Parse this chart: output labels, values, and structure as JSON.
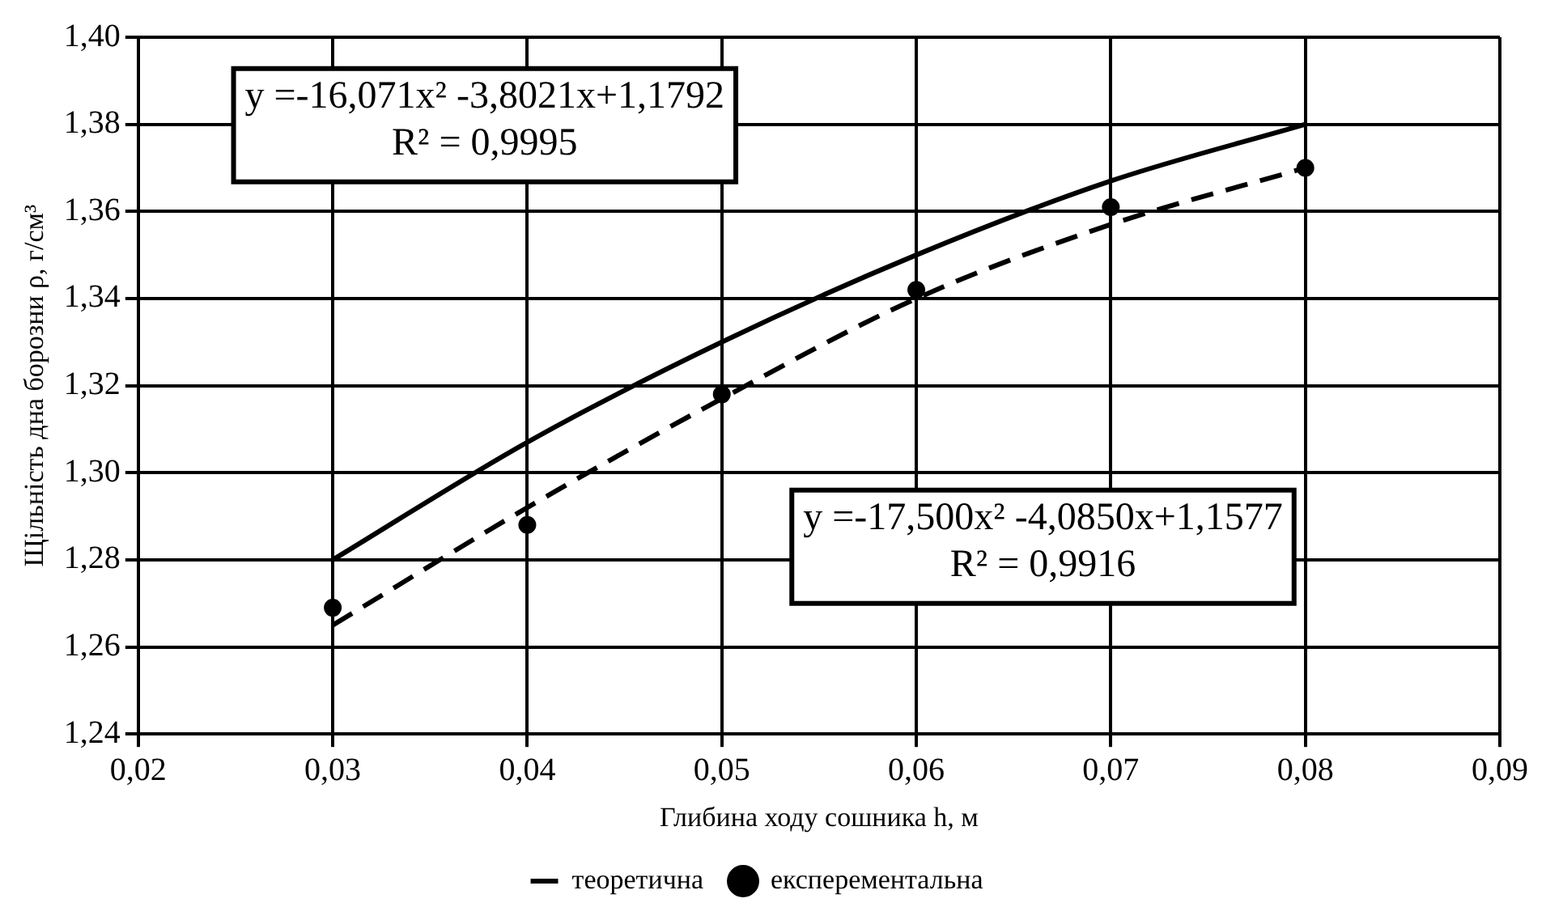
{
  "chart_data": {
    "type": "line",
    "xlabel": "Глибина ходу сошника h, м",
    "ylabel": "Щільність дна борозни ρ, г/см³",
    "xlim": [
      0.02,
      0.09
    ],
    "ylim": [
      1.24,
      1.4
    ],
    "xticks": [
      {
        "value": 0.02,
        "label": "0,02"
      },
      {
        "value": 0.03,
        "label": "0,03"
      },
      {
        "value": 0.04,
        "label": "0,04"
      },
      {
        "value": 0.05,
        "label": "0,05"
      },
      {
        "value": 0.06,
        "label": "0,06"
      },
      {
        "value": 0.07,
        "label": "0,07"
      },
      {
        "value": 0.08,
        "label": "0,08"
      },
      {
        "value": 0.09,
        "label": "0,09"
      }
    ],
    "yticks": [
      {
        "value": 1.24,
        "label": "1,24"
      },
      {
        "value": 1.26,
        "label": "1,26"
      },
      {
        "value": 1.28,
        "label": "1,28"
      },
      {
        "value": 1.3,
        "label": "1,30"
      },
      {
        "value": 1.32,
        "label": "1,32"
      },
      {
        "value": 1.34,
        "label": "1,34"
      },
      {
        "value": 1.36,
        "label": "1,36"
      },
      {
        "value": 1.38,
        "label": "1,38"
      },
      {
        "value": 1.4,
        "label": "1,40"
      }
    ],
    "grid": true,
    "legend": "bottom",
    "x": [
      0.03,
      0.04,
      0.05,
      0.06,
      0.07,
      0.08
    ],
    "series": [
      {
        "name": "теоретична",
        "color": "#000000",
        "line_style": "solid",
        "marker": "none",
        "values": [
          1.28,
          1.307,
          1.33,
          1.35,
          1.367,
          1.38
        ]
      },
      {
        "name": "експерементальна",
        "type": "scatter",
        "color": "#000000",
        "marker": "circle",
        "values": [
          1.269,
          1.288,
          1.318,
          1.342,
          1.361,
          1.37
        ]
      },
      {
        "color": "#000000",
        "line_style": "dashed",
        "marker": "none",
        "values": [
          1.265,
          1.292,
          1.317,
          1.34,
          1.357,
          1.37
        ]
      }
    ],
    "annotations": [
      "y =-16,071x² -3,8021x+1,1792\nR² = 0,9995",
      "y =-17,500x² -4,0850x+1,1577\nR² = 0,9916"
    ]
  }
}
